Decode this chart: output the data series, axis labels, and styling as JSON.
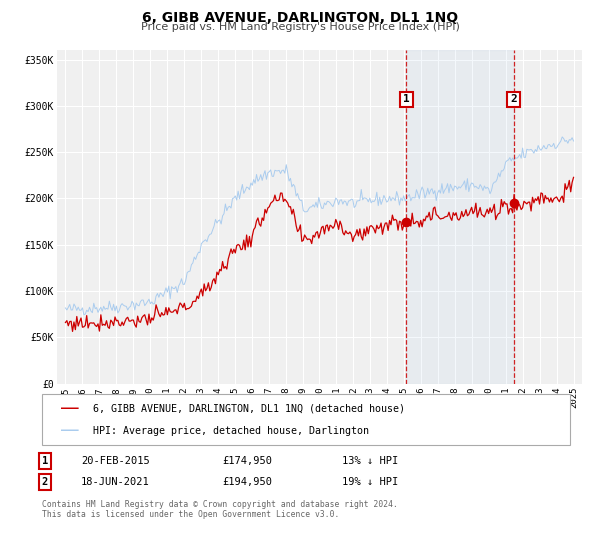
{
  "title": "6, GIBB AVENUE, DARLINGTON, DL1 1NQ",
  "subtitle": "Price paid vs. HM Land Registry's House Price Index (HPI)",
  "ylim": [
    0,
    360000
  ],
  "yticks": [
    0,
    50000,
    100000,
    150000,
    200000,
    250000,
    300000,
    350000
  ],
  "ytick_labels": [
    "£0",
    "£50K",
    "£100K",
    "£150K",
    "£200K",
    "£250K",
    "£300K",
    "£350K"
  ],
  "xlim": [
    1994.5,
    2025.5
  ],
  "xticks": [
    1995,
    1996,
    1997,
    1998,
    1999,
    2000,
    2001,
    2002,
    2003,
    2004,
    2005,
    2006,
    2007,
    2008,
    2009,
    2010,
    2011,
    2012,
    2013,
    2014,
    2015,
    2016,
    2017,
    2018,
    2019,
    2020,
    2021,
    2022,
    2023,
    2024,
    2025
  ],
  "red_line_color": "#cc0000",
  "blue_line_color": "#aaccee",
  "marker1_x": 2015.13,
  "marker1_y": 174950,
  "marker2_x": 2021.46,
  "marker2_y": 194950,
  "vline1_x": 2015.13,
  "vline2_x": 2021.46,
  "legend_red_label": "6, GIBB AVENUE, DARLINGTON, DL1 1NQ (detached house)",
  "legend_blue_label": "HPI: Average price, detached house, Darlington",
  "table_row1": [
    "1",
    "20-FEB-2015",
    "£174,950",
    "13% ↓ HPI"
  ],
  "table_row2": [
    "2",
    "18-JUN-2021",
    "£194,950",
    "19% ↓ HPI"
  ],
  "footer": "Contains HM Land Registry data © Crown copyright and database right 2024.\nThis data is licensed under the Open Government Licence v3.0.",
  "background_color": "#ffffff",
  "plot_bg_color": "#f0f0f0"
}
